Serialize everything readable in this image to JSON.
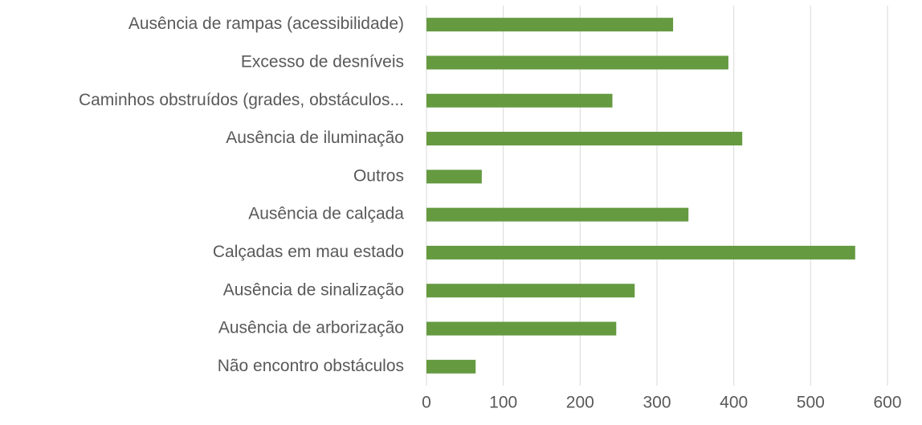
{
  "chart_data": {
    "type": "hbar",
    "categories": [
      "Ausência de rampas (acessibilidade)",
      "Excesso de desníveis",
      "Caminhos obstruídos (grades, obstáculos...",
      "Ausência de iluminação",
      "Outros",
      "Ausência de calçada",
      "Calçadas em mau estado",
      "Ausência de sinalização",
      "Ausência de arborização",
      "Não encontro obstáculos"
    ],
    "values": [
      321,
      393,
      242,
      411,
      72,
      341,
      558,
      271,
      247,
      64
    ],
    "color": "#659a41",
    "xlim": [
      0,
      600
    ],
    "xticks": [
      0,
      100,
      200,
      300,
      400,
      500,
      600
    ],
    "grid": true
  }
}
